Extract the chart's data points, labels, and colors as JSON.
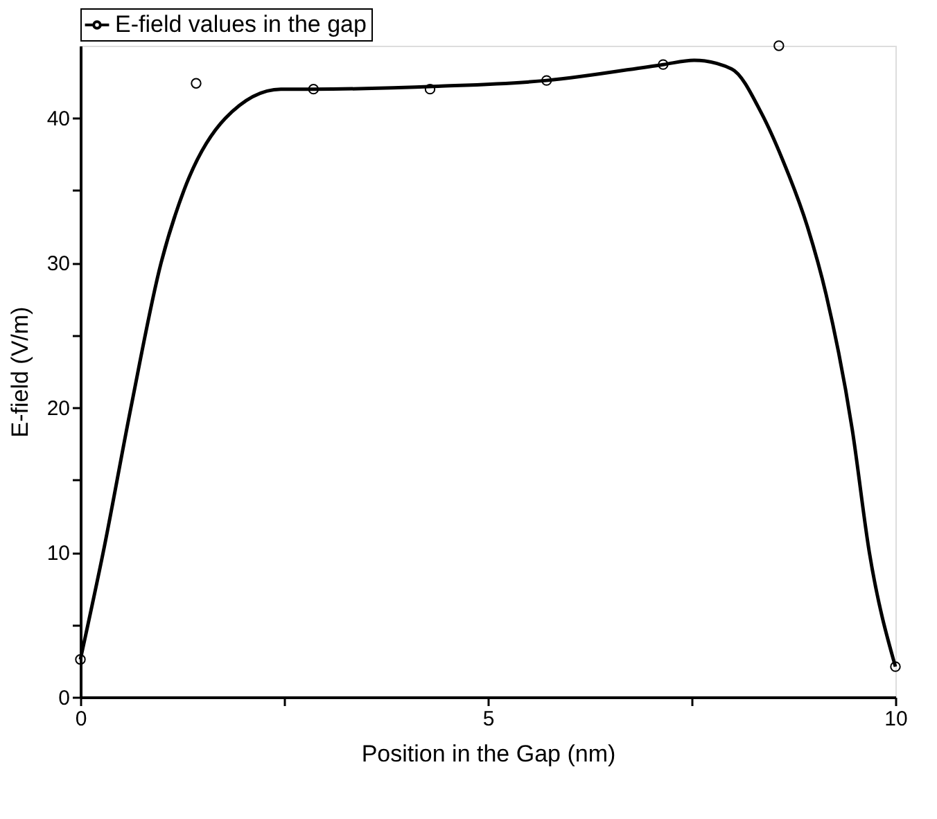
{
  "chart_data": {
    "type": "scatter",
    "xlabel": "Position in the Gap (nm)",
    "ylabel": "E-field (V/m)",
    "xlim": [
      0,
      10
    ],
    "ylim": [
      0,
      45
    ],
    "xticks": [
      0,
      {
        "value": 2.5,
        "label": null
      },
      5,
      {
        "value": 7.5,
        "label": null
      },
      10
    ],
    "yticks": [
      0,
      {
        "value": 5,
        "label": null
      },
      10,
      {
        "value": 15,
        "label": null
      },
      20,
      {
        "value": 25,
        "label": null
      },
      30,
      {
        "value": 35,
        "label": null
      },
      40
    ],
    "grid": false,
    "legend": "top",
    "series": [
      {
        "name": "E-field values in the gap",
        "marker": "circle",
        "color": "#000000",
        "x": [
          0,
          1.42,
          2.86,
          4.29,
          5.72,
          7.15,
          8.57,
          10
        ],
        "values": [
          2.6,
          42.4,
          42.0,
          42.0,
          42.6,
          43.7,
          45,
          2.1
        ]
      },
      {
        "type": "line",
        "color": "#000000",
        "line_style": "solid",
        "x": [
          0,
          0.28,
          0.62,
          0.99,
          1.27,
          1.78,
          2.46,
          2.86,
          4.39,
          5.72,
          7.15,
          7.53,
          7.99,
          8.36,
          8.61,
          8.92,
          9.15,
          9.47,
          9.68,
          10
        ],
        "values": [
          2.6,
          10,
          20,
          30,
          35,
          40,
          42,
          42.0,
          42.2,
          42.6,
          43.7,
          44.0,
          43.4,
          40.3,
          37.2,
          32.5,
          27.8,
          18.5,
          10,
          2.1
        ]
      }
    ]
  }
}
